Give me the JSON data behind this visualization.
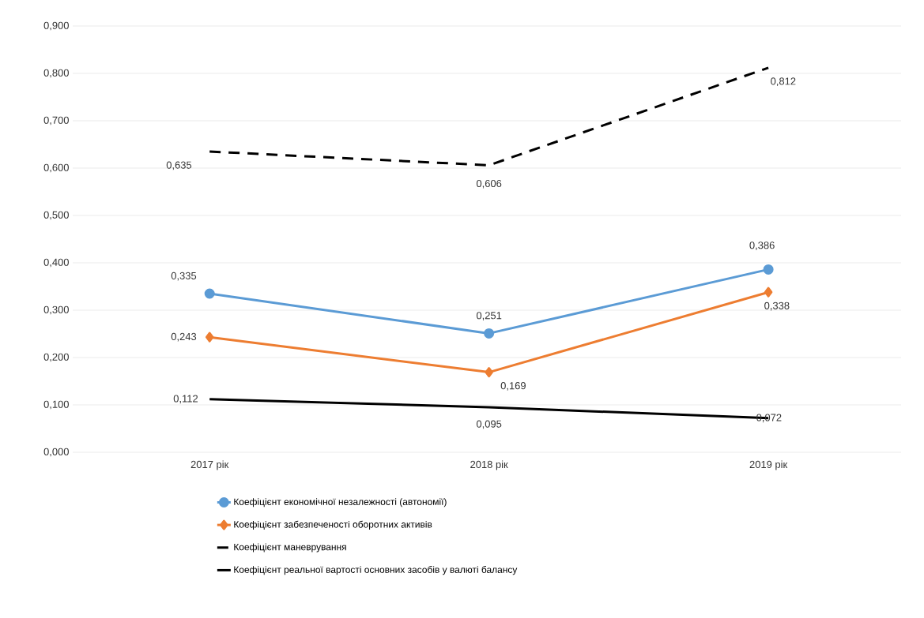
{
  "chart_data": {
    "type": "line",
    "categories": [
      "2017 рік",
      "2018 рік",
      "2019 рік"
    ],
    "series": [
      {
        "name": "Коефіцієнт економічної незалежності (автономії)",
        "color": "#5b9bd5",
        "marker": "circle",
        "line_style": "solid",
        "values": [
          0.335,
          0.251,
          0.386
        ],
        "value_labels": [
          "0,335",
          "0,251",
          "0,386"
        ]
      },
      {
        "name": "Коефіцієнт забезпеченості оборотних активів",
        "color": "#ed7d31",
        "marker": "diamond",
        "line_style": "solid",
        "values": [
          0.243,
          0.169,
          0.338
        ],
        "value_labels": [
          "0,243",
          "0,169",
          "0,338"
        ]
      },
      {
        "name": "Коефіцієнт маневрування",
        "color": "#000000",
        "marker": "none",
        "line_style": "dashed",
        "values": [
          0.635,
          0.606,
          0.812
        ],
        "value_labels": [
          "0,635",
          "0,606",
          "0,812"
        ]
      },
      {
        "name": "Коефіцієнт реальної вартості основних засобів у валюті балансу",
        "color": "#000000",
        "marker": "none",
        "line_style": "solid",
        "values": [
          0.112,
          0.095,
          0.072
        ],
        "value_labels": [
          "0,112",
          "0,095",
          "0,072"
        ]
      }
    ],
    "ylim": [
      0,
      0.9
    ],
    "yticks": [
      {
        "value": 0,
        "label": "0,000"
      },
      {
        "value": 0.1,
        "label": "0,100"
      },
      {
        "value": 0.2,
        "label": "0,200"
      },
      {
        "value": 0.3,
        "label": "0,300"
      },
      {
        "value": 0.4,
        "label": "0,400"
      },
      {
        "value": 0.5,
        "label": "0,500"
      },
      {
        "value": 0.6,
        "label": "0,600"
      },
      {
        "value": 0.7,
        "label": "0,700"
      },
      {
        "value": 0.8,
        "label": "0,800"
      },
      {
        "value": 0.9,
        "label": "0,900"
      }
    ],
    "grid": "y",
    "legend": "bottom"
  }
}
